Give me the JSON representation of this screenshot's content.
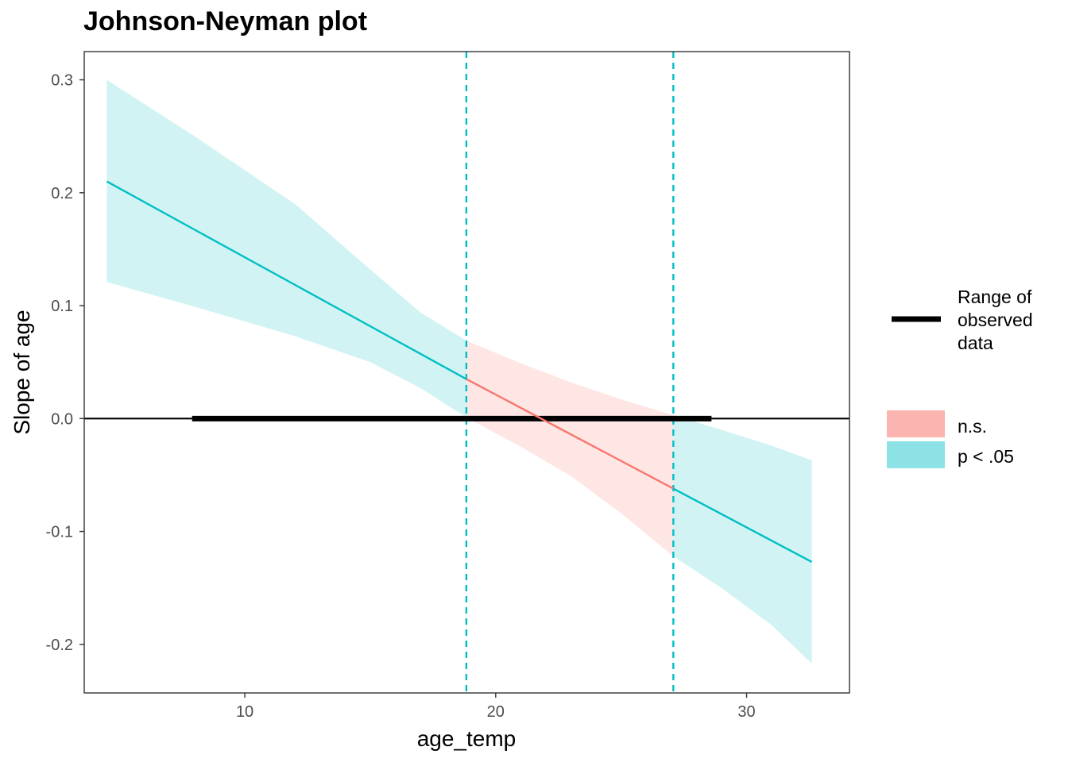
{
  "chart_data": {
    "type": "line",
    "title": "Johnson-Neyman plot",
    "xlabel": "age_temp",
    "ylabel": "Slope of age",
    "xlim": [
      3.6,
      34.1
    ],
    "ylim": [
      -0.243,
      0.325
    ],
    "x_ticks": [
      10,
      20,
      30
    ],
    "y_ticks": [
      -0.2,
      -0.1,
      0.0,
      0.1,
      0.2,
      0.3
    ],
    "x_tick_labels": [
      "10",
      "20",
      "30"
    ],
    "y_tick_labels": [
      "-0.2",
      "-0.1",
      "0.0",
      "0.1",
      "0.2",
      "0.3"
    ],
    "grid": false,
    "legend_position": "right",
    "colors": {
      "significant": "#00BFC4",
      "not_significant": "#F8766D",
      "range": "#000000"
    },
    "johnson_neyman_bounds": [
      18.83,
      27.08
    ],
    "observed_range": [
      7.9,
      28.6
    ],
    "reference_line_y": 0.0,
    "series": [
      {
        "name": "p < .05",
        "region": "significant",
        "x": [
          4.5,
          18.83
        ],
        "y": [
          0.21,
          0.035
        ],
        "lower": [
          [
            4.5,
            0.121
          ],
          [
            8,
            0.099
          ],
          [
            12,
            0.073
          ],
          [
            15,
            0.05
          ],
          [
            17,
            0.027
          ],
          [
            18.83,
            0.001
          ]
        ],
        "upper": [
          [
            4.5,
            0.3
          ],
          [
            8,
            0.25
          ],
          [
            12,
            0.19
          ],
          [
            15,
            0.132
          ],
          [
            17,
            0.094
          ],
          [
            18.83,
            0.069
          ]
        ]
      },
      {
        "name": "n.s.",
        "region": "not_significant",
        "x": [
          18.83,
          27.08
        ],
        "y": [
          0.035,
          -0.062
        ],
        "lower": [
          [
            18.83,
            0.001
          ],
          [
            21,
            -0.025
          ],
          [
            23,
            -0.051
          ],
          [
            25,
            -0.084
          ],
          [
            27.08,
            -0.122
          ]
        ],
        "upper": [
          [
            18.83,
            0.069
          ],
          [
            21,
            0.049
          ],
          [
            23,
            0.032
          ],
          [
            25,
            0.017
          ],
          [
            27.08,
            0.003
          ]
        ]
      },
      {
        "name": "p < .05",
        "region": "significant",
        "x": [
          27.08,
          32.6
        ],
        "y": [
          -0.062,
          -0.127
        ],
        "lower": [
          [
            27.08,
            -0.122
          ],
          [
            29,
            -0.15
          ],
          [
            31,
            -0.183
          ],
          [
            32.6,
            -0.217
          ]
        ],
        "upper": [
          [
            27.08,
            0.003
          ],
          [
            29,
            -0.01
          ],
          [
            31,
            -0.024
          ],
          [
            32.6,
            -0.037
          ]
        ]
      }
    ]
  },
  "legend": {
    "range_lines": [
      "Range of",
      "observed",
      "data"
    ],
    "ns_label": "n.s.",
    "sig_label": "p < .05"
  }
}
